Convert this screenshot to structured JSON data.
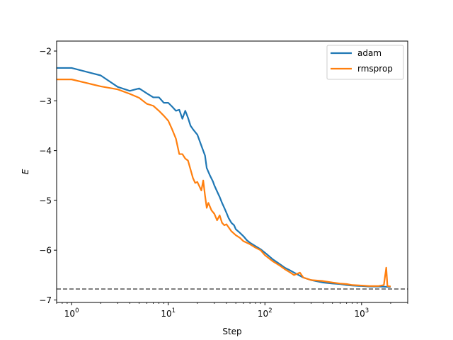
{
  "chart_data": {
    "type": "line",
    "title": "",
    "xlabel": "Step",
    "ylabel": "E",
    "xscale": "log",
    "xlim": [
      0.7,
      3000
    ],
    "ylim": [
      -7.05,
      -1.8
    ],
    "xticks": [
      {
        "base": "10",
        "exp": "0",
        "value": 1
      },
      {
        "base": "10",
        "exp": "1",
        "value": 10
      },
      {
        "base": "10",
        "exp": "2",
        "value": 100
      },
      {
        "base": "10",
        "exp": "3",
        "value": 1000
      }
    ],
    "yticks": [
      {
        "label": "−2",
        "value": -2
      },
      {
        "label": "−3",
        "value": -3
      },
      {
        "label": "−4",
        "value": -4
      },
      {
        "label": "−5",
        "value": -5
      },
      {
        "label": "−6",
        "value": -6
      },
      {
        "label": "−7",
        "value": -7
      }
    ],
    "grid": false,
    "legend_position": "top-right",
    "reference_line": {
      "y": -6.78,
      "style": "dashed",
      "color": "#555555"
    },
    "series": [
      {
        "name": "adam",
        "color": "#1f77b4",
        "points": [
          [
            0.7,
            -2.34
          ],
          [
            1,
            -2.34
          ],
          [
            2,
            -2.49
          ],
          [
            3,
            -2.72
          ],
          [
            4,
            -2.8
          ],
          [
            5,
            -2.75
          ],
          [
            6,
            -2.85
          ],
          [
            7,
            -2.93
          ],
          [
            8,
            -2.93
          ],
          [
            9,
            -3.04
          ],
          [
            10,
            -3.04
          ],
          [
            11,
            -3.12
          ],
          [
            12,
            -3.2
          ],
          [
            13,
            -3.18
          ],
          [
            14,
            -3.36
          ],
          [
            15,
            -3.2
          ],
          [
            16,
            -3.34
          ],
          [
            17,
            -3.5
          ],
          [
            18,
            -3.57
          ],
          [
            20,
            -3.68
          ],
          [
            22,
            -3.9
          ],
          [
            24,
            -4.1
          ],
          [
            25,
            -4.35
          ],
          [
            27,
            -4.5
          ],
          [
            29,
            -4.62
          ],
          [
            30,
            -4.7
          ],
          [
            32,
            -4.82
          ],
          [
            34,
            -4.93
          ],
          [
            36,
            -5.05
          ],
          [
            38,
            -5.15
          ],
          [
            40,
            -5.25
          ],
          [
            42,
            -5.35
          ],
          [
            45,
            -5.45
          ],
          [
            48,
            -5.5
          ],
          [
            50,
            -5.58
          ],
          [
            55,
            -5.65
          ],
          [
            60,
            -5.72
          ],
          [
            65,
            -5.8
          ],
          [
            70,
            -5.85
          ],
          [
            80,
            -5.92
          ],
          [
            90,
            -5.98
          ],
          [
            100,
            -6.05
          ],
          [
            120,
            -6.18
          ],
          [
            140,
            -6.27
          ],
          [
            160,
            -6.35
          ],
          [
            180,
            -6.4
          ],
          [
            200,
            -6.45
          ],
          [
            250,
            -6.55
          ],
          [
            300,
            -6.6
          ],
          [
            400,
            -6.65
          ],
          [
            500,
            -6.67
          ],
          [
            600,
            -6.68
          ],
          [
            700,
            -6.7
          ],
          [
            800,
            -6.71
          ],
          [
            1000,
            -6.72
          ],
          [
            1200,
            -6.73
          ],
          [
            1500,
            -6.73
          ],
          [
            2000,
            -6.74
          ]
        ]
      },
      {
        "name": "rmsprop",
        "color": "#ff7f0e",
        "points": [
          [
            0.7,
            -2.57
          ],
          [
            1,
            -2.57
          ],
          [
            2,
            -2.71
          ],
          [
            3,
            -2.77
          ],
          [
            4,
            -2.86
          ],
          [
            5,
            -2.94
          ],
          [
            6,
            -3.06
          ],
          [
            7,
            -3.1
          ],
          [
            8,
            -3.2
          ],
          [
            9,
            -3.3
          ],
          [
            10,
            -3.4
          ],
          [
            11,
            -3.58
          ],
          [
            12,
            -3.76
          ],
          [
            13,
            -4.07
          ],
          [
            14,
            -4.07
          ],
          [
            15,
            -4.16
          ],
          [
            16,
            -4.2
          ],
          [
            17,
            -4.38
          ],
          [
            18,
            -4.55
          ],
          [
            19,
            -4.65
          ],
          [
            20,
            -4.63
          ],
          [
            22,
            -4.8
          ],
          [
            23,
            -4.6
          ],
          [
            24,
            -4.9
          ],
          [
            25,
            -5.15
          ],
          [
            26,
            -5.05
          ],
          [
            28,
            -5.2
          ],
          [
            30,
            -5.27
          ],
          [
            32,
            -5.4
          ],
          [
            34,
            -5.3
          ],
          [
            36,
            -5.45
          ],
          [
            38,
            -5.5
          ],
          [
            40,
            -5.48
          ],
          [
            45,
            -5.62
          ],
          [
            50,
            -5.7
          ],
          [
            55,
            -5.75
          ],
          [
            60,
            -5.82
          ],
          [
            70,
            -5.88
          ],
          [
            80,
            -5.95
          ],
          [
            90,
            -6.0
          ],
          [
            100,
            -6.1
          ],
          [
            120,
            -6.22
          ],
          [
            140,
            -6.3
          ],
          [
            160,
            -6.38
          ],
          [
            180,
            -6.44
          ],
          [
            200,
            -6.5
          ],
          [
            230,
            -6.45
          ],
          [
            250,
            -6.55
          ],
          [
            300,
            -6.6
          ],
          [
            400,
            -6.62
          ],
          [
            500,
            -6.65
          ],
          [
            600,
            -6.67
          ],
          [
            700,
            -6.68
          ],
          [
            800,
            -6.7
          ],
          [
            1000,
            -6.71
          ],
          [
            1200,
            -6.72
          ],
          [
            1500,
            -6.72
          ],
          [
            1700,
            -6.7
          ],
          [
            1800,
            -6.35
          ],
          [
            1850,
            -6.72
          ],
          [
            2000,
            -6.73
          ]
        ]
      }
    ]
  }
}
